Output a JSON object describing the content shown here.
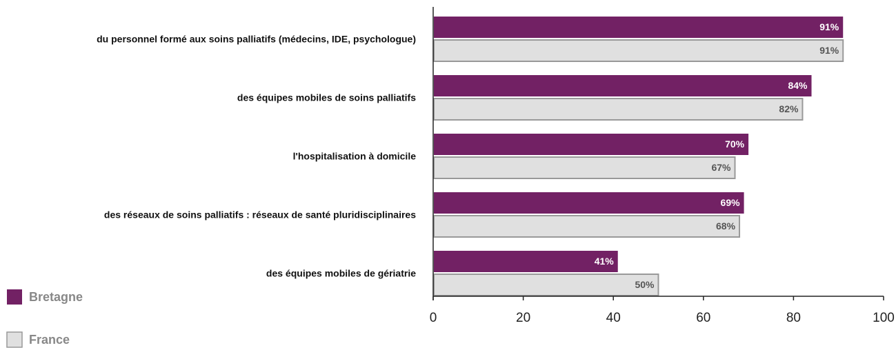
{
  "chart_data": {
    "type": "hbar",
    "categories": [
      "du personnel formé aux soins palliatifs (médecins, IDE, psychologue)",
      "des équipes mobiles de soins palliatifs",
      "l'hospitalisation à domicile",
      "des réseaux de soins palliatifs : réseaux de santé pluridisciplinaires",
      "des équipes mobiles de gériatrie"
    ],
    "series": [
      {
        "name": "Bretagne",
        "color": "#722164",
        "values": [
          91,
          84,
          70,
          69,
          41
        ],
        "value_labels": [
          "91%",
          "84%",
          "70%",
          "69%",
          "41%"
        ]
      },
      {
        "name": "France",
        "color": "#e0e0e0",
        "values": [
          91,
          82,
          67,
          68,
          50
        ],
        "value_labels": [
          "91%",
          "82%",
          "67%",
          "68%",
          "50%"
        ]
      }
    ],
    "xlim": [
      0,
      100
    ],
    "xticks": [
      0,
      20,
      40,
      60,
      80,
      100
    ]
  }
}
